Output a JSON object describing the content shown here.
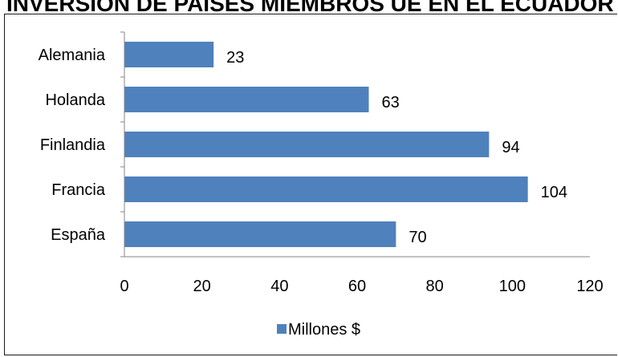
{
  "chart_data": {
    "type": "bar",
    "orientation": "horizontal",
    "title": "INVERSIÓN DE PAÍSES MIEMBROS UE EN EL ECUADOR",
    "categories": [
      "Alemania",
      "Holanda",
      "Finlandia",
      "Francia",
      "España"
    ],
    "series": [
      {
        "name": "Millones $",
        "values": [
          23,
          63,
          94,
          104,
          70
        ],
        "color": "#4f81bd"
      }
    ],
    "xlim": [
      0,
      120
    ],
    "xticks": [
      0,
      20,
      40,
      60,
      80,
      100,
      120
    ],
    "grid": false,
    "legend": "bottom"
  }
}
